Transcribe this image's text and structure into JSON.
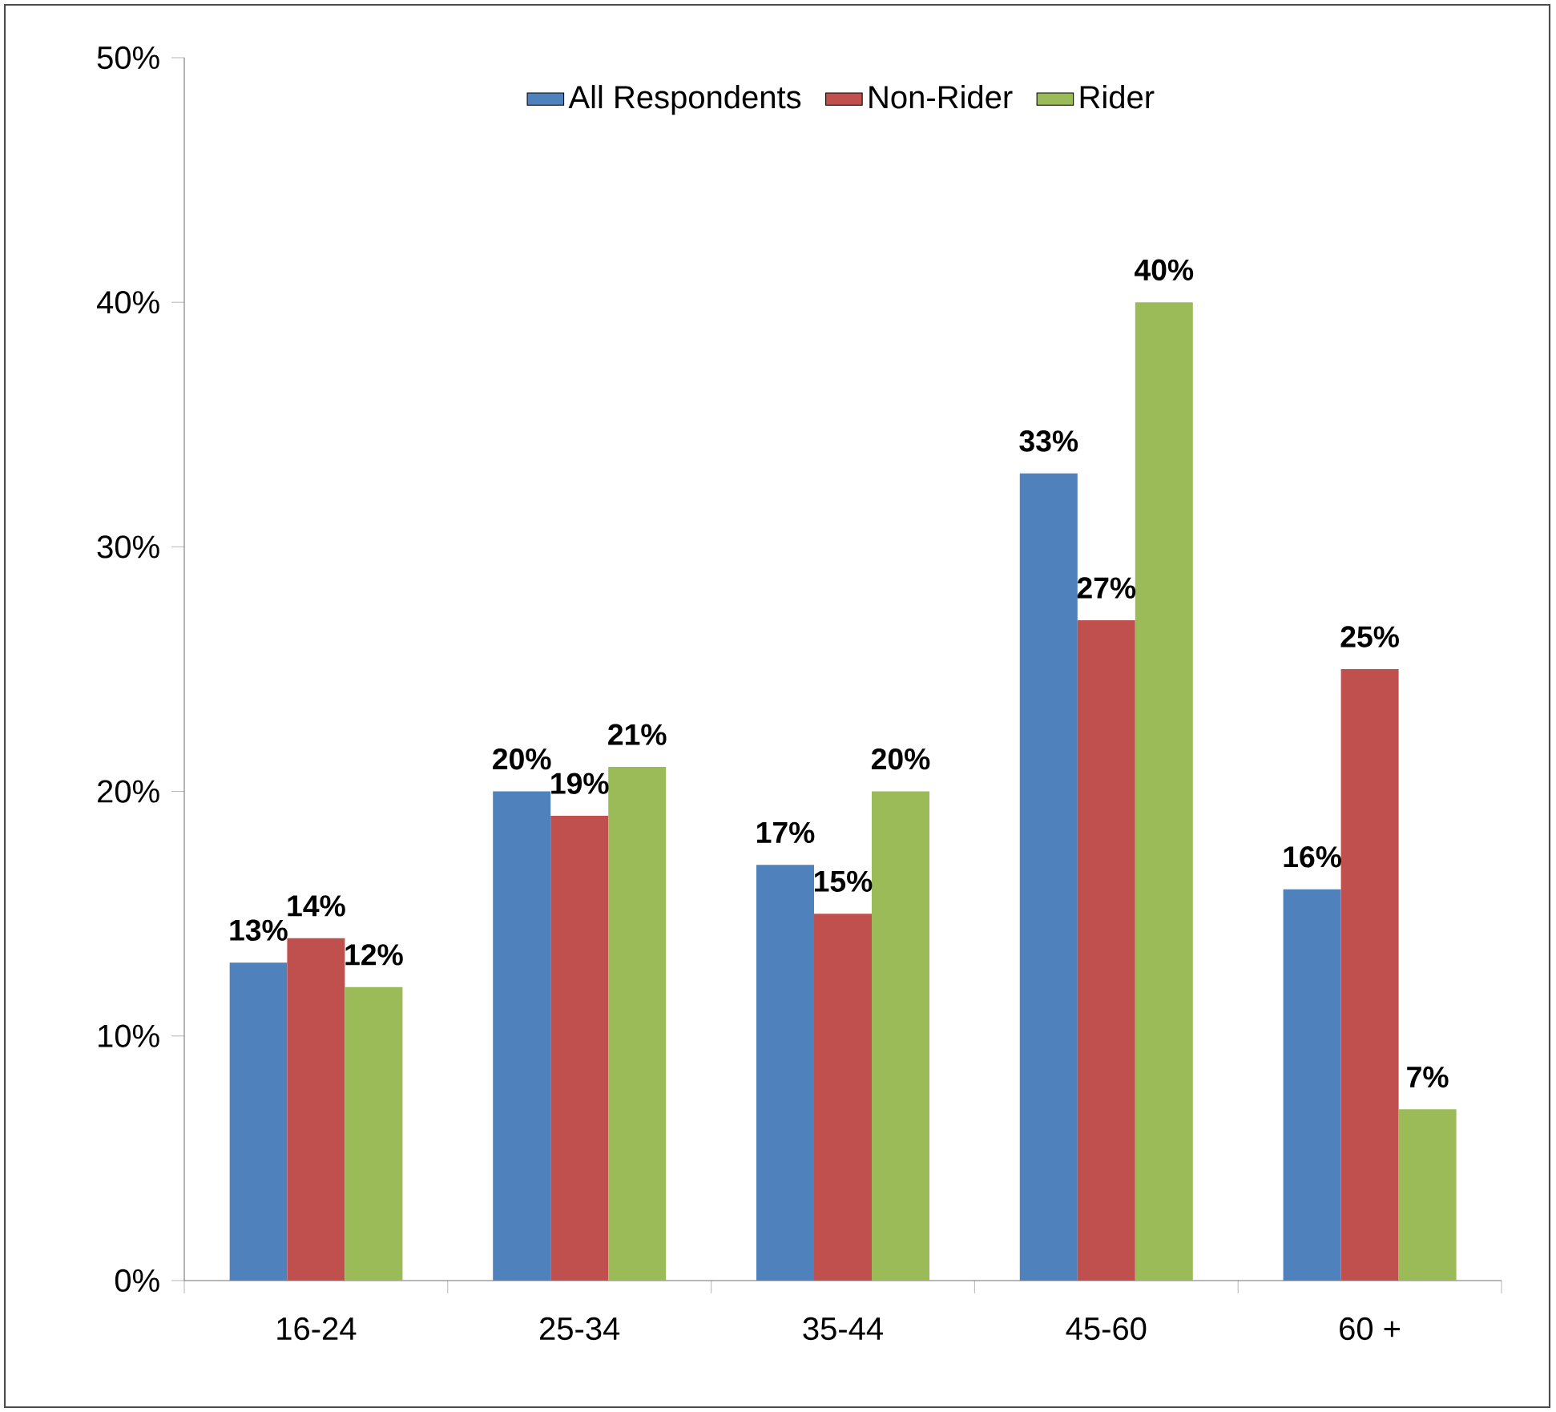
{
  "chart_data": {
    "type": "bar",
    "categories": [
      "16-24",
      "25-34",
      "35-44",
      "45-60",
      "60 +"
    ],
    "series": [
      {
        "name": "All Respondents",
        "color": "#4f81bd",
        "values": [
          13,
          20,
          17,
          33,
          16
        ],
        "value_labels": [
          "13%",
          "20%",
          "17%",
          "33%",
          "16%"
        ]
      },
      {
        "name": "Non-Rider",
        "color": "#c0504d",
        "values": [
          14,
          19,
          15,
          27,
          25
        ],
        "value_labels": [
          "14%",
          "19%",
          "15%",
          "27%",
          "25%"
        ]
      },
      {
        "name": "Rider",
        "color": "#9bbb59",
        "values": [
          12,
          21,
          20,
          40,
          7
        ],
        "value_labels": [
          "12%",
          "21%",
          "20%",
          "40%",
          "7%"
        ]
      }
    ],
    "ylim": [
      0,
      50
    ],
    "yticks": [
      {
        "value": 0,
        "label": "0%"
      },
      {
        "value": 10,
        "label": "10%"
      },
      {
        "value": 20,
        "label": "20%"
      },
      {
        "value": 30,
        "label": "30%"
      },
      {
        "value": 40,
        "label": "40%"
      },
      {
        "value": 50,
        "label": "50%"
      }
    ],
    "legend": "top"
  }
}
